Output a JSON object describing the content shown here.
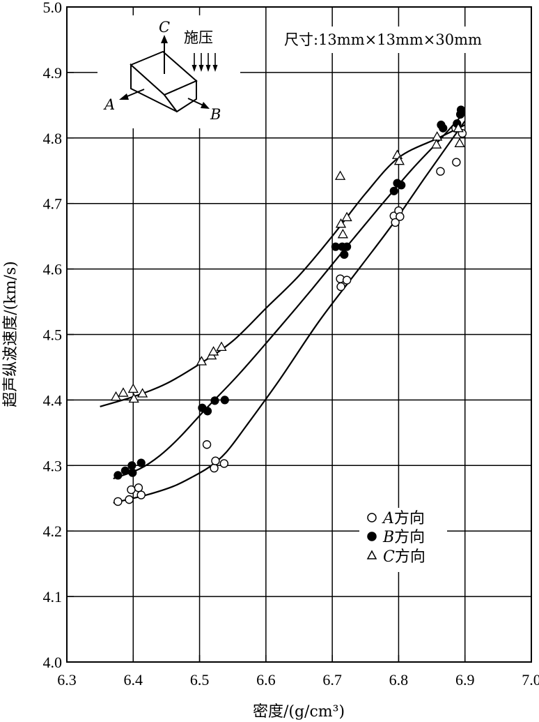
{
  "chart_data": {
    "type": "scatter",
    "title": "",
    "xlabel": "密度/(g/cm³)",
    "ylabel": "超声纵波速度/(km/s)",
    "xlim": [
      6.3,
      7.0
    ],
    "ylim": [
      4.0,
      5.0
    ],
    "x_ticks": [
      "6.3",
      "6.4",
      "6.5",
      "6.6",
      "6.7",
      "6.8",
      "6.9",
      "7.0"
    ],
    "y_ticks": [
      "4.0",
      "4.1",
      "4.2",
      "4.3",
      "4.4",
      "4.5",
      "4.6",
      "4.7",
      "4.8",
      "4.9",
      "5.0"
    ],
    "grid": true,
    "legend_position": "lower-right",
    "annotation": "尺寸:13mm×13mm×30mm",
    "inset": {
      "label_a": "A",
      "label_b": "B",
      "label_c": "C",
      "pressure_label": "施压"
    },
    "series": [
      {
        "name_letter": "A",
        "name_suffix": "方向",
        "marker": "open-circle",
        "points": [
          [
            6.377,
            4.245
          ],
          [
            6.394,
            4.248
          ],
          [
            6.397,
            4.263
          ],
          [
            6.408,
            4.266
          ],
          [
            6.412,
            4.255
          ],
          [
            6.511,
            4.332
          ],
          [
            6.522,
            4.296
          ],
          [
            6.524,
            4.307
          ],
          [
            6.537,
            4.303
          ],
          [
            6.712,
            4.585
          ],
          [
            6.713,
            4.573
          ],
          [
            6.722,
            4.583
          ],
          [
            6.793,
            4.681
          ],
          [
            6.795,
            4.671
          ],
          [
            6.8,
            4.689
          ],
          [
            6.802,
            4.68
          ],
          [
            6.863,
            4.749
          ],
          [
            6.887,
            4.763
          ],
          [
            6.886,
            4.815
          ],
          [
            6.896,
            4.807
          ]
        ],
        "fit": [
          [
            6.37,
            4.243
          ],
          [
            6.42,
            4.255
          ],
          [
            6.46,
            4.268
          ],
          [
            6.49,
            4.283
          ],
          [
            6.515,
            4.298
          ],
          [
            6.54,
            4.32
          ],
          [
            6.57,
            4.36
          ],
          [
            6.62,
            4.43
          ],
          [
            6.68,
            4.52
          ],
          [
            6.74,
            4.6
          ],
          [
            6.79,
            4.667
          ],
          [
            6.84,
            4.74
          ],
          [
            6.9,
            4.826
          ]
        ]
      },
      {
        "name_letter": "B",
        "name_suffix": "方向",
        "marker": "filled-circle",
        "points": [
          [
            6.377,
            4.285
          ],
          [
            6.388,
            4.292
          ],
          [
            6.398,
            4.3
          ],
          [
            6.399,
            4.289
          ],
          [
            6.412,
            4.304
          ],
          [
            6.504,
            4.388
          ],
          [
            6.512,
            4.383
          ],
          [
            6.523,
            4.399
          ],
          [
            6.538,
            4.4
          ],
          [
            6.705,
            4.634
          ],
          [
            6.715,
            4.634
          ],
          [
            6.718,
            4.622
          ],
          [
            6.722,
            4.634
          ],
          [
            6.793,
            4.719
          ],
          [
            6.798,
            4.731
          ],
          [
            6.804,
            4.728
          ],
          [
            6.864,
            4.82
          ],
          [
            6.867,
            4.815
          ],
          [
            6.888,
            4.822
          ],
          [
            6.893,
            4.836
          ],
          [
            6.894,
            4.843
          ]
        ],
        "fit": [
          [
            6.37,
            4.28
          ],
          [
            6.41,
            4.295
          ],
          [
            6.44,
            4.315
          ],
          [
            6.47,
            4.343
          ],
          [
            6.51,
            4.387
          ],
          [
            6.56,
            4.44
          ],
          [
            6.62,
            4.51
          ],
          [
            6.67,
            4.57
          ],
          [
            6.72,
            4.632
          ],
          [
            6.77,
            4.693
          ],
          [
            6.82,
            4.752
          ],
          [
            6.86,
            4.795
          ],
          [
            6.9,
            4.84
          ]
        ]
      },
      {
        "name_letter": "C",
        "name_suffix": "方向",
        "marker": "open-triangle",
        "points": [
          [
            6.374,
            4.405
          ],
          [
            6.385,
            4.411
          ],
          [
            6.4,
            4.417
          ],
          [
            6.401,
            4.402
          ],
          [
            6.414,
            4.41
          ],
          [
            6.503,
            4.459
          ],
          [
            6.518,
            4.468
          ],
          [
            6.521,
            4.474
          ],
          [
            6.533,
            4.481
          ],
          [
            6.712,
            4.742
          ],
          [
            6.713,
            4.669
          ],
          [
            6.716,
            4.653
          ],
          [
            6.722,
            4.679
          ],
          [
            6.798,
            4.774
          ],
          [
            6.801,
            4.765
          ],
          [
            6.858,
            4.802
          ],
          [
            6.857,
            4.79
          ],
          [
            6.892,
            4.792
          ],
          [
            6.89,
            4.815
          ]
        ],
        "fit": [
          [
            6.35,
            4.39
          ],
          [
            6.4,
            4.405
          ],
          [
            6.45,
            4.425
          ],
          [
            6.5,
            4.455
          ],
          [
            6.55,
            4.49
          ],
          [
            6.6,
            4.54
          ],
          [
            6.65,
            4.59
          ],
          [
            6.7,
            4.65
          ],
          [
            6.75,
            4.715
          ],
          [
            6.8,
            4.77
          ],
          [
            6.86,
            4.8
          ],
          [
            6.9,
            4.82
          ]
        ]
      }
    ]
  }
}
